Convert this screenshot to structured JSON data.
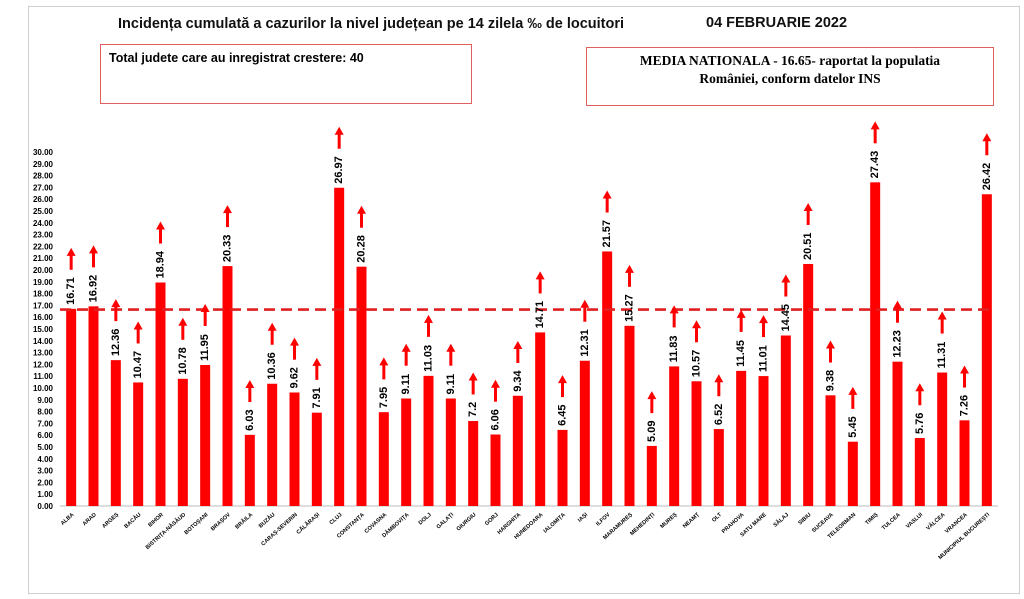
{
  "header": {
    "title": "Incidența cumulată a cazurilor la nivel județean pe 14 zilela ‰ de locuitori",
    "date": "04 FEBRUARIE 2022"
  },
  "info_box": {
    "text": "Total judete care au inregistrat crestere: 40"
  },
  "national_box": {
    "line1": "MEDIA NATIONALA - 16.65-  raportat la populatia",
    "line2": "României, conform datelor INS"
  },
  "colors": {
    "bar": "#ff0000",
    "arrow": "#ff0000",
    "reference_line": "#e02020"
  },
  "chart_data": {
    "type": "bar",
    "title": "Incidența cumulată a cazurilor la nivel județean pe 14 zilela ‰ de locuitori",
    "xlabel": "",
    "ylabel": "",
    "ylim": [
      0,
      30
    ],
    "yticks_step": 1,
    "ytick_format": "2 decimals",
    "grid": false,
    "reference_line": {
      "value": 16.65,
      "style": "dashed"
    },
    "trend_marker": "up-arrow above every bar",
    "categories": [
      "ALBA",
      "ARAD",
      "ARGEȘ",
      "BACĂU",
      "BIHOR",
      "BISTRIȚA-NĂSĂUD",
      "BOTOȘANI",
      "BRAȘOV",
      "BRĂILA",
      "BUZĂU",
      "CARAȘ-SEVERIN",
      "CĂLĂRAȘI",
      "CLUJ",
      "CONSTANȚA",
      "COVASNA",
      "DÂMBOVIȚA",
      "DOLJ",
      "GALAȚI",
      "GIURGIU",
      "GORJ",
      "HARGHITA",
      "HUNEDOARA",
      "IALOMIȚA",
      "IAȘI",
      "ILFOV",
      "MARAMUREȘ",
      "MEHEDINȚI",
      "MUREȘ",
      "NEAMȚ",
      "OLT",
      "PRAHOVA",
      "SATU MARE",
      "SĂLAJ",
      "SIBIU",
      "SUCEAVA",
      "TELEORMAN",
      "TIMIȘ",
      "TULCEA",
      "VASLUI",
      "VÂLCEA",
      "VRANCEA",
      "MUNICIPIUL BUCUREȘTI"
    ],
    "values": [
      16.71,
      16.92,
      12.36,
      10.47,
      18.94,
      10.78,
      11.95,
      20.33,
      6.03,
      10.36,
      9.62,
      7.91,
      26.97,
      20.28,
      7.95,
      9.11,
      11.03,
      9.11,
      7.2,
      6.06,
      9.34,
      14.71,
      6.45,
      12.31,
      21.57,
      15.27,
      5.09,
      11.83,
      10.57,
      6.52,
      11.45,
      11.01,
      14.45,
      20.51,
      9.38,
      5.45,
      27.43,
      12.23,
      5.76,
      11.31,
      7.26,
      26.42
    ],
    "value_labels": [
      "16.71",
      "16.92",
      "12.36",
      "10.47",
      "18.94",
      "10.78",
      "11.95",
      "20.33",
      "6.03",
      "10.36",
      "9.62",
      "7.91",
      "26.97",
      "20.28",
      "7.95",
      "9.11",
      "11.03",
      "9.11",
      "7.2",
      "6.06",
      "9.34",
      "14.71",
      "6.45",
      "12.31",
      "21.57",
      "15.27",
      "5.09",
      "11.83",
      "10.57",
      "6.52",
      "11.45",
      "11.01",
      "14.45",
      "20.51",
      "9.38",
      "5.45",
      "27.43",
      "12.23",
      "5.76",
      "11.31",
      "7.26",
      "26.42"
    ]
  }
}
